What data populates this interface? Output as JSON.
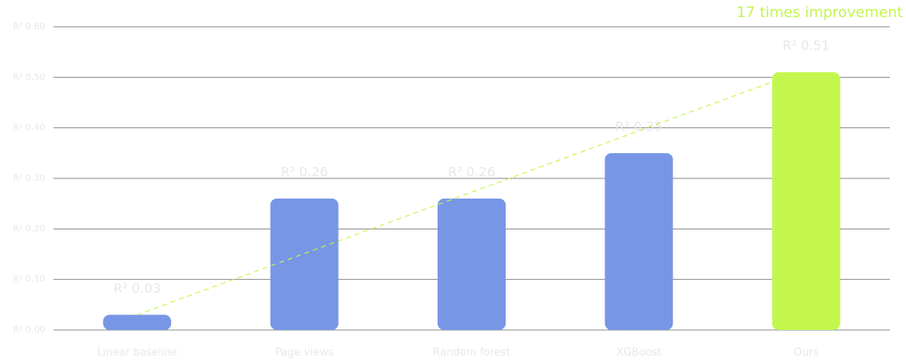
{
  "chart_data": {
    "type": "bar",
    "annotation": "17 times improvement",
    "categories": [
      "Linear baseline",
      "Page views",
      "Random forest",
      "XGBoost",
      "Ours"
    ],
    "values": [
      0.03,
      0.26,
      0.26,
      0.35,
      0.51
    ],
    "value_labels": [
      "R² 0.03",
      "R² 0.26",
      "R² 0.26",
      "R² 0.35",
      "R² 0.51"
    ],
    "colors": [
      "#7896e6",
      "#7896e6",
      "#7896e6",
      "#7896e6",
      "#c3f74d"
    ],
    "ylim": [
      0,
      0.6
    ],
    "yticks": [
      {
        "value": 0,
        "label": "R² 0.00"
      },
      {
        "value": 0.1,
        "label": "R² 0.10"
      },
      {
        "value": 0.2,
        "label": "R² 0.20"
      },
      {
        "value": 0.3,
        "label": "R² 0.30"
      },
      {
        "value": 0.4,
        "label": "R² 0.40"
      },
      {
        "value": 0.5,
        "label": "R² 0.50"
      },
      {
        "value": 0.6,
        "label": "R² 0.60"
      }
    ],
    "grid": true,
    "annotation_color": "#c3f74d"
  }
}
